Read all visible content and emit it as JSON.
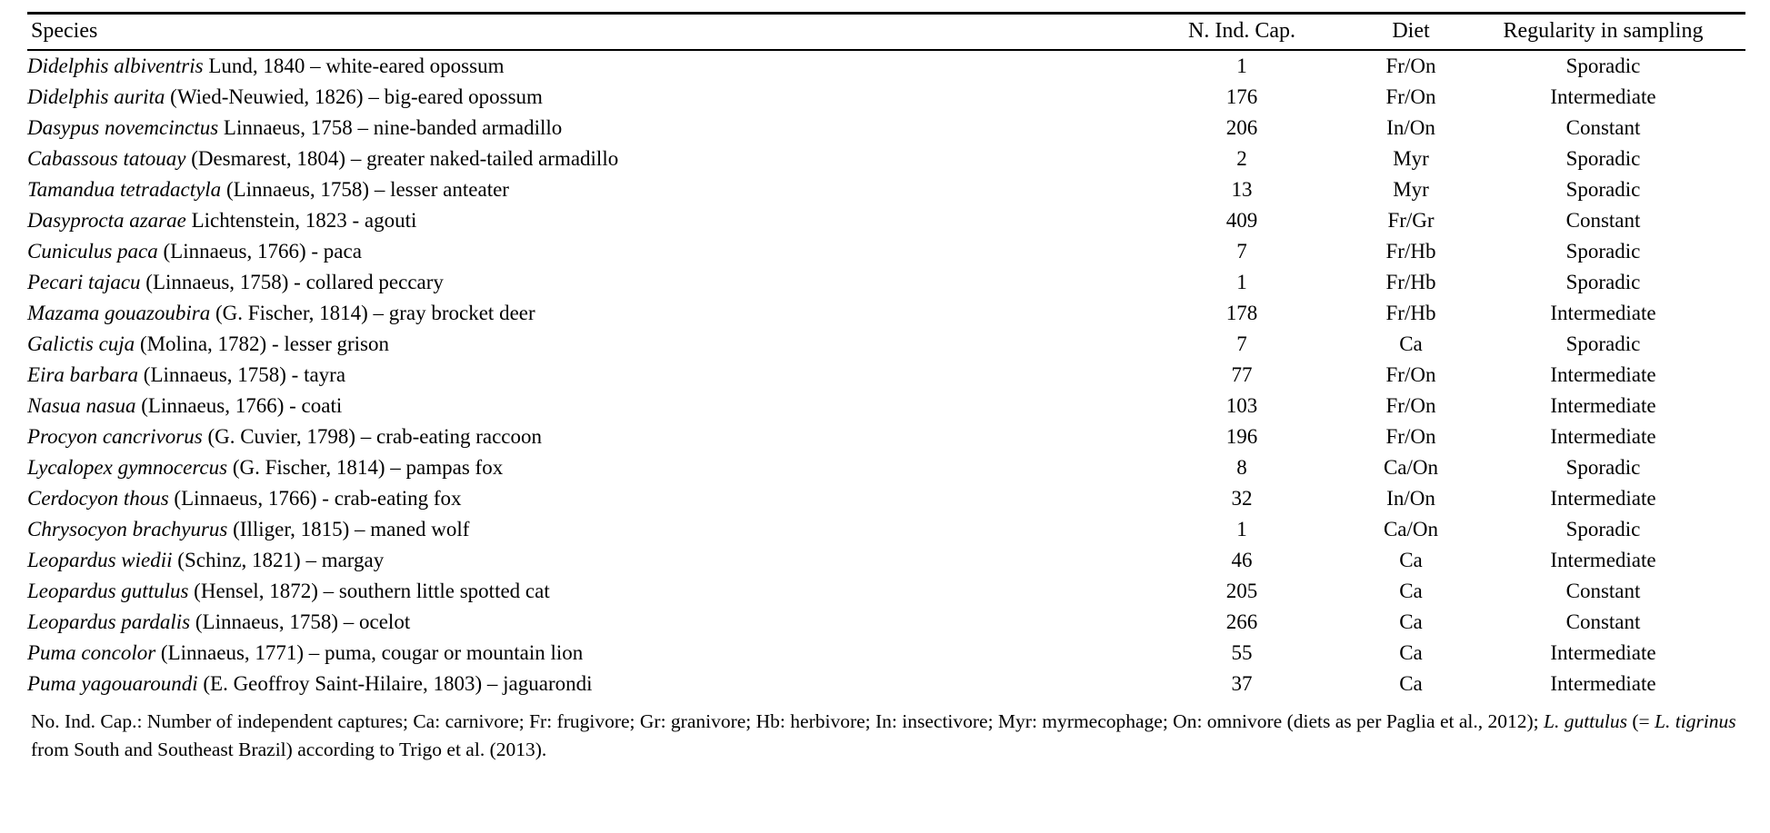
{
  "table": {
    "columns": {
      "species": "Species",
      "captures": "N. Ind. Cap.",
      "diet": "Diet",
      "regularity": "Regularity in sampling"
    },
    "rows": [
      {
        "species_italic": "Didelphis albiventris",
        "species_rest": " Lund, 1840 – white-eared opossum",
        "n_ind_cap": "1",
        "diet": "Fr/On",
        "regularity": "Sporadic"
      },
      {
        "species_italic": "Didelphis aurita",
        "species_rest": " (Wied-Neuwied, 1826) – big-eared opossum",
        "n_ind_cap": "176",
        "diet": "Fr/On",
        "regularity": "Intermediate"
      },
      {
        "species_italic": "Dasypus novemcinctus",
        "species_rest": " Linnaeus, 1758 – nine-banded armadillo",
        "n_ind_cap": "206",
        "diet": "In/On",
        "regularity": "Constant"
      },
      {
        "species_italic": "Cabassous tatouay",
        "species_rest": " (Desmarest, 1804) – greater naked-tailed armadillo",
        "n_ind_cap": "2",
        "diet": "Myr",
        "regularity": "Sporadic"
      },
      {
        "species_italic": "Tamandua tetradactyla",
        "species_rest": " (Linnaeus, 1758) – lesser anteater",
        "n_ind_cap": "13",
        "diet": "Myr",
        "regularity": "Sporadic"
      },
      {
        "species_italic": "Dasyprocta azarae",
        "species_rest": " Lichtenstein, 1823 - agouti",
        "n_ind_cap": "409",
        "diet": "Fr/Gr",
        "regularity": "Constant"
      },
      {
        "species_italic": "Cuniculus paca",
        "species_rest": " (Linnaeus, 1766) - paca",
        "n_ind_cap": "7",
        "diet": "Fr/Hb",
        "regularity": "Sporadic"
      },
      {
        "species_italic": "Pecari tajacu",
        "species_rest": " (Linnaeus, 1758) - collared peccary",
        "n_ind_cap": "1",
        "diet": "Fr/Hb",
        "regularity": "Sporadic"
      },
      {
        "species_italic": "Mazama gouazoubira",
        "species_rest": " (G. Fischer, 1814) – gray brocket deer",
        "n_ind_cap": "178",
        "diet": "Fr/Hb",
        "regularity": "Intermediate"
      },
      {
        "species_italic": "Galictis cuja",
        "species_rest": " (Molina, 1782) - lesser grison",
        "n_ind_cap": "7",
        "diet": "Ca",
        "regularity": "Sporadic"
      },
      {
        "species_italic": "Eira barbara",
        "species_rest": " (Linnaeus, 1758) - tayra",
        "n_ind_cap": "77",
        "diet": "Fr/On",
        "regularity": "Intermediate"
      },
      {
        "species_italic": "Nasua nasua",
        "species_rest": " (Linnaeus, 1766) - coati",
        "n_ind_cap": "103",
        "diet": "Fr/On",
        "regularity": "Intermediate"
      },
      {
        "species_italic": "Procyon cancrivorus",
        "species_rest": " (G. Cuvier, 1798) – crab-eating raccoon",
        "n_ind_cap": "196",
        "diet": "Fr/On",
        "regularity": "Intermediate"
      },
      {
        "species_italic": "Lycalopex gymnocercus",
        "species_rest": " (G. Fischer, 1814) – pampas fox",
        "n_ind_cap": "8",
        "diet": "Ca/On",
        "regularity": "Sporadic"
      },
      {
        "species_italic": "Cerdocyon thous",
        "species_rest": " (Linnaeus, 1766) - crab-eating fox",
        "n_ind_cap": "32",
        "diet": "In/On",
        "regularity": "Intermediate"
      },
      {
        "species_italic": "Chrysocyon brachyurus",
        "species_rest": " (Illiger, 1815) – maned wolf",
        "n_ind_cap": "1",
        "diet": "Ca/On",
        "regularity": "Sporadic"
      },
      {
        "species_italic": "Leopardus wiedii",
        "species_rest": " (Schinz, 1821) – margay",
        "n_ind_cap": "46",
        "diet": "Ca",
        "regularity": "Intermediate"
      },
      {
        "species_italic": "Leopardus guttulus",
        "species_rest": " (Hensel, 1872) – southern little spotted cat",
        "n_ind_cap": "205",
        "diet": "Ca",
        "regularity": "Constant"
      },
      {
        "species_italic": "Leopardus pardalis",
        "species_rest": " (Linnaeus, 1758) – ocelot",
        "n_ind_cap": "266",
        "diet": "Ca",
        "regularity": "Constant"
      },
      {
        "species_italic": "Puma concolor",
        "species_rest": " (Linnaeus, 1771) – puma, cougar or mountain lion",
        "n_ind_cap": "55",
        "diet": "Ca",
        "regularity": "Intermediate"
      },
      {
        "species_italic": "Puma yagouaroundi",
        "species_rest": " (E. Geoffroy Saint-Hilaire, 1803) – jaguarondi",
        "n_ind_cap": "37",
        "diet": "Ca",
        "regularity": "Intermediate"
      }
    ],
    "footnote_segments": [
      {
        "text": "No. Ind. Cap.: Number of independent captures; Ca: carnivore; Fr: frugivore; Gr: granivore; Hb: herbivore; In: insectivore; Myr: myrmecophage; On: omnivore (diets as per Paglia et al., 2012); ",
        "italic": false
      },
      {
        "text": "L. guttulus",
        "italic": true
      },
      {
        "text": " (= ",
        "italic": false
      },
      {
        "text": "L. tigrinus",
        "italic": true
      },
      {
        "text": " from South and Southeast Brazil) according to Trigo et al. (2013).",
        "italic": false
      }
    ]
  }
}
